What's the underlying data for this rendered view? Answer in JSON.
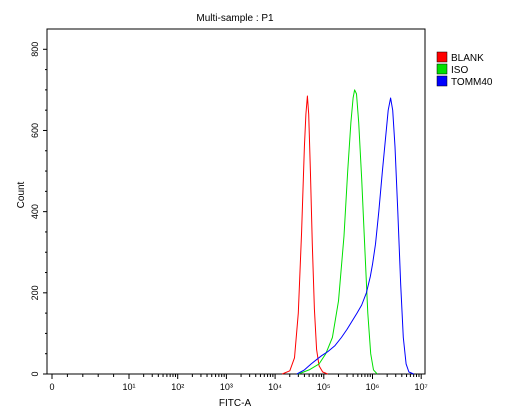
{
  "chart_data": {
    "type": "line",
    "title": "Multi-sample : P1",
    "xlabel": "FITC-A",
    "ylabel": "Count",
    "xscale": "biexponential",
    "ylim": [
      0,
      850
    ],
    "grid": false,
    "legend_position": "top-right",
    "x_tick_labels": [
      "0",
      "10¹",
      "10²",
      "10³",
      "10⁴",
      "10⁵",
      "10⁶",
      "10⁷"
    ],
    "x_tick_values": [
      0,
      10,
      100,
      1000,
      10000,
      100000,
      1000000,
      10000000
    ],
    "y_ticks": [
      0,
      200,
      400,
      600,
      800
    ],
    "series": [
      {
        "name": "BLANK",
        "color": "#ff0000",
        "points": [
          [
            14000,
            0
          ],
          [
            20000,
            8
          ],
          [
            25000,
            40
          ],
          [
            30000,
            150
          ],
          [
            35000,
            350
          ],
          [
            40000,
            560
          ],
          [
            43000,
            640
          ],
          [
            46000,
            685
          ],
          [
            49000,
            640
          ],
          [
            53000,
            500
          ],
          [
            58000,
            320
          ],
          [
            64000,
            160
          ],
          [
            71000,
            60
          ],
          [
            80000,
            20
          ],
          [
            95000,
            5
          ],
          [
            120000,
            0
          ]
        ]
      },
      {
        "name": "ISO",
        "color": "#00e000",
        "points": [
          [
            30000,
            0
          ],
          [
            50000,
            10
          ],
          [
            80000,
            25
          ],
          [
            110000,
            50
          ],
          [
            150000,
            90
          ],
          [
            200000,
            180
          ],
          [
            260000,
            340
          ],
          [
            310000,
            500
          ],
          [
            360000,
            620
          ],
          [
            400000,
            680
          ],
          [
            430000,
            700
          ],
          [
            470000,
            690
          ],
          [
            520000,
            620
          ],
          [
            600000,
            480
          ],
          [
            700000,
            300
          ],
          [
            800000,
            150
          ],
          [
            920000,
            50
          ],
          [
            1050000,
            10
          ],
          [
            1250000,
            0
          ]
        ]
      },
      {
        "name": "TOMM40",
        "color": "#0000ff",
        "points": [
          [
            28000,
            0
          ],
          [
            40000,
            10
          ],
          [
            55000,
            25
          ],
          [
            70000,
            35
          ],
          [
            90000,
            45
          ],
          [
            120000,
            55
          ],
          [
            170000,
            70
          ],
          [
            230000,
            90
          ],
          [
            300000,
            110
          ],
          [
            380000,
            130
          ],
          [
            480000,
            150
          ],
          [
            600000,
            170
          ],
          [
            750000,
            200
          ],
          [
            900000,
            240
          ],
          [
            1000000,
            270
          ],
          [
            1150000,
            320
          ],
          [
            1350000,
            400
          ],
          [
            1600000,
            500
          ],
          [
            1850000,
            580
          ],
          [
            2100000,
            650
          ],
          [
            2350000,
            680
          ],
          [
            2600000,
            650
          ],
          [
            2900000,
            560
          ],
          [
            3300000,
            400
          ],
          [
            3800000,
            220
          ],
          [
            4300000,
            90
          ],
          [
            4900000,
            25
          ],
          [
            5600000,
            5
          ],
          [
            7000000,
            0
          ]
        ]
      }
    ]
  }
}
